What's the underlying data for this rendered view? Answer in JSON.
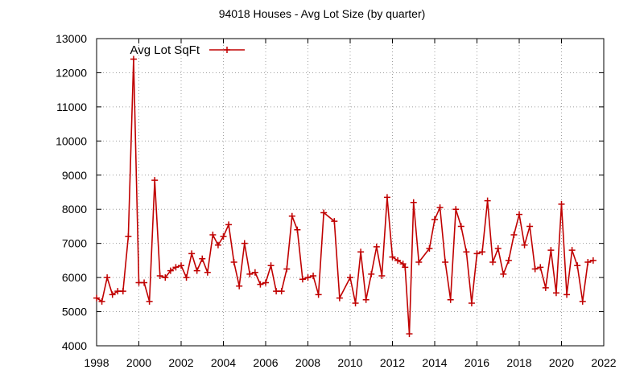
{
  "chart_data": {
    "type": "line",
    "title": "94018 Houses - Avg Lot Size (by quarter)",
    "xlabel": "",
    "ylabel": "",
    "xlim": [
      1998,
      2022
    ],
    "ylim": [
      4000,
      13000
    ],
    "grid": true,
    "legend_position": "top-left",
    "x_ticks": [
      "1998",
      "2000",
      "2002",
      "2004",
      "2006",
      "2008",
      "2010",
      "2012",
      "2014",
      "2016",
      "2018",
      "2020",
      "2022"
    ],
    "y_ticks": [
      "4000",
      "5000",
      "6000",
      "7000",
      "8000",
      "9000",
      "10000",
      "11000",
      "12000",
      "13000"
    ],
    "series": [
      {
        "name": "Avg Lot SqFt",
        "color": "#c00000",
        "points": [
          [
            1998.0,
            5400
          ],
          [
            1998.25,
            5300
          ],
          [
            1998.5,
            6000
          ],
          [
            1998.75,
            5500
          ],
          [
            1999.0,
            5600
          ],
          [
            1999.25,
            5600
          ],
          [
            1999.5,
            7200
          ],
          [
            1999.75,
            12400
          ],
          [
            2000.0,
            5850
          ],
          [
            2000.25,
            5850
          ],
          [
            2000.5,
            5300
          ],
          [
            2000.75,
            8850
          ],
          [
            2001.0,
            6050
          ],
          [
            2001.25,
            6000
          ],
          [
            2001.5,
            6200
          ],
          [
            2001.75,
            6300
          ],
          [
            2002.0,
            6350
          ],
          [
            2002.25,
            6000
          ],
          [
            2002.5,
            6700
          ],
          [
            2002.75,
            6200
          ],
          [
            2003.0,
            6550
          ],
          [
            2003.25,
            6150
          ],
          [
            2003.5,
            7250
          ],
          [
            2003.75,
            6950
          ],
          [
            2004.0,
            7200
          ],
          [
            2004.25,
            7550
          ],
          [
            2004.5,
            6450
          ],
          [
            2004.75,
            5750
          ],
          [
            2005.0,
            7000
          ],
          [
            2005.25,
            6100
          ],
          [
            2005.5,
            6150
          ],
          [
            2005.75,
            5800
          ],
          [
            2006.0,
            5850
          ],
          [
            2006.25,
            6350
          ],
          [
            2006.5,
            5600
          ],
          [
            2006.75,
            5600
          ],
          [
            2007.0,
            6250
          ],
          [
            2007.25,
            7800
          ],
          [
            2007.5,
            7400
          ],
          [
            2007.75,
            5950
          ],
          [
            2008.0,
            6000
          ],
          [
            2008.25,
            6050
          ],
          [
            2008.5,
            5500
          ],
          [
            2008.75,
            7900
          ],
          [
            2009.25,
            7650
          ],
          [
            2009.5,
            5400
          ],
          [
            2010.0,
            6000
          ],
          [
            2010.25,
            5250
          ],
          [
            2010.5,
            6750
          ],
          [
            2010.75,
            5350
          ],
          [
            2011.0,
            6100
          ],
          [
            2011.25,
            6900
          ],
          [
            2011.5,
            6050
          ],
          [
            2011.75,
            8350
          ],
          [
            2012.0,
            6600
          ],
          [
            2012.25,
            6500
          ],
          [
            2012.5,
            6400
          ],
          [
            2012.6,
            6300
          ],
          [
            2012.8,
            4350
          ],
          [
            2013.0,
            8200
          ],
          [
            2013.25,
            6450
          ],
          [
            2013.75,
            6850
          ],
          [
            2014.0,
            7700
          ],
          [
            2014.25,
            8050
          ],
          [
            2014.5,
            6450
          ],
          [
            2014.75,
            5350
          ],
          [
            2015.0,
            8000
          ],
          [
            2015.25,
            7500
          ],
          [
            2015.5,
            6750
          ],
          [
            2015.75,
            5250
          ],
          [
            2016.0,
            6700
          ],
          [
            2016.25,
            6750
          ],
          [
            2016.5,
            8250
          ],
          [
            2016.75,
            6450
          ],
          [
            2017.0,
            6850
          ],
          [
            2017.25,
            6100
          ],
          [
            2017.5,
            6500
          ],
          [
            2017.75,
            7250
          ],
          [
            2018.0,
            7850
          ],
          [
            2018.25,
            6950
          ],
          [
            2018.5,
            7500
          ],
          [
            2018.75,
            6250
          ],
          [
            2019.0,
            6300
          ],
          [
            2019.25,
            5700
          ],
          [
            2019.5,
            6800
          ],
          [
            2019.75,
            5550
          ],
          [
            2020.0,
            8150
          ],
          [
            2020.25,
            5500
          ],
          [
            2020.5,
            6800
          ],
          [
            2020.75,
            6350
          ],
          [
            2021.0,
            5300
          ],
          [
            2021.25,
            6450
          ],
          [
            2021.5,
            6500
          ]
        ]
      }
    ]
  }
}
